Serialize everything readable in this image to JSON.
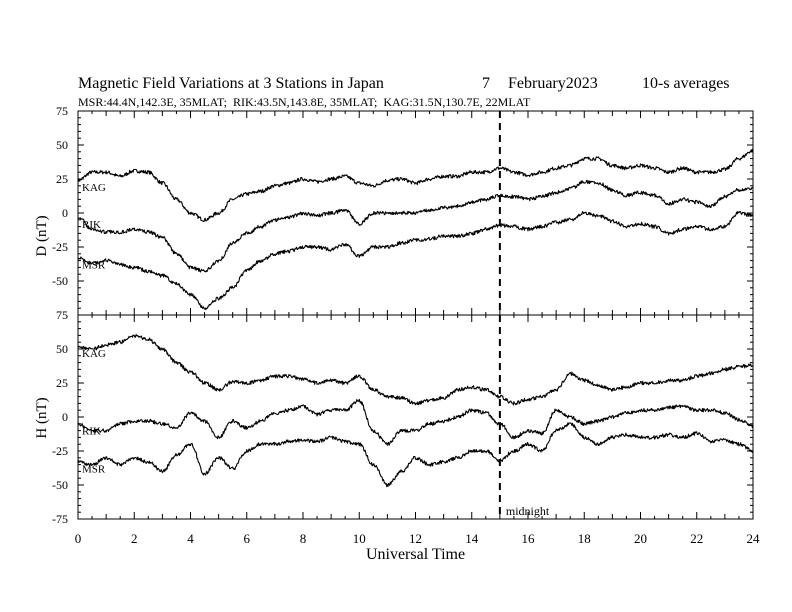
{
  "header": {
    "title": "Magnetic Field Variations at 3 Stations in Japan",
    "day": "7",
    "month_year": "February2023",
    "averaging": "10-s averages",
    "stations_line": "MSR:44.4N,142.3E, 35MLAT;  RIK:43.5N,143.8E, 35MLAT;  KAG:31.5N,130.7E, 22MLAT"
  },
  "chart_data": [
    {
      "type": "line",
      "panel": "D",
      "ylabel": "D (nT)",
      "ylim": [
        -75,
        75
      ],
      "yticks": [
        75,
        50,
        25,
        0,
        -25,
        -50,
        -75
      ],
      "xlim": [
        0,
        24
      ],
      "xticks": [
        0,
        2,
        4,
        6,
        8,
        10,
        12,
        14,
        16,
        18,
        20,
        22,
        24
      ],
      "series": [
        {
          "name": "KAG",
          "x": [
            0,
            0.5,
            1,
            1.5,
            2,
            2.5,
            3,
            3.5,
            4,
            4.5,
            5,
            5.5,
            6,
            6.5,
            7,
            7.5,
            8,
            8.5,
            9,
            9.5,
            10,
            10.5,
            11,
            11.5,
            12,
            12.5,
            13,
            13.5,
            14,
            14.5,
            15,
            15.5,
            16,
            16.5,
            17,
            17.5,
            18,
            18.5,
            19,
            19.5,
            20,
            20.5,
            21,
            21.5,
            22,
            22.5,
            23,
            23.5,
            24
          ],
          "values": [
            24,
            30,
            30,
            27,
            31,
            30,
            22,
            10,
            0,
            -5,
            0,
            10,
            14,
            16,
            20,
            22,
            25,
            23,
            25,
            27,
            22,
            20,
            24,
            25,
            22,
            25,
            27,
            27,
            30,
            30,
            33,
            30,
            28,
            30,
            33,
            35,
            40,
            40,
            35,
            33,
            35,
            33,
            30,
            33,
            30,
            30,
            32,
            40,
            46
          ]
        },
        {
          "name": "RIK",
          "x": [
            0,
            0.5,
            1,
            1.5,
            2,
            2.5,
            3,
            3.5,
            4,
            4.5,
            5,
            5.5,
            6,
            6.5,
            7,
            7.5,
            8,
            8.5,
            9,
            9.5,
            10,
            10.5,
            11,
            11.5,
            12,
            12.5,
            13,
            13.5,
            14,
            14.5,
            15,
            15.5,
            16,
            16.5,
            17,
            17.5,
            18,
            18.5,
            19,
            19.5,
            20,
            20.5,
            21,
            21.5,
            22,
            22.5,
            23,
            23.5,
            24
          ],
          "values": [
            -3,
            -12,
            -14,
            -14,
            -12,
            -14,
            -18,
            -30,
            -40,
            -43,
            -35,
            -22,
            -15,
            -10,
            -5,
            -3,
            0,
            -2,
            0,
            2,
            -8,
            0,
            0,
            0,
            0,
            2,
            4,
            5,
            8,
            10,
            13,
            12,
            10,
            12,
            15,
            18,
            23,
            22,
            17,
            13,
            15,
            13,
            7,
            10,
            8,
            5,
            12,
            17,
            18
          ]
        },
        {
          "name": "MSR",
          "x": [
            0,
            0.5,
            1,
            1.5,
            2,
            2.5,
            3,
            3.5,
            4,
            4.5,
            5,
            5.5,
            6,
            6.5,
            7,
            7.5,
            8,
            8.5,
            9,
            9.5,
            10,
            10.5,
            11,
            11.5,
            12,
            12.5,
            13,
            13.5,
            14,
            14.5,
            15,
            15.5,
            16,
            16.5,
            17,
            17.5,
            18,
            18.5,
            19,
            19.5,
            20,
            20.5,
            21,
            21.5,
            22,
            22.5,
            23,
            23.5,
            24
          ],
          "values": [
            -33,
            -37,
            -35,
            -38,
            -40,
            -43,
            -46,
            -52,
            -60,
            -70,
            -63,
            -55,
            -42,
            -35,
            -30,
            -28,
            -25,
            -25,
            -27,
            -23,
            -32,
            -25,
            -25,
            -22,
            -20,
            -19,
            -17,
            -17,
            -15,
            -12,
            -9,
            -10,
            -12,
            -10,
            -7,
            -5,
            0,
            -2,
            -6,
            -10,
            -8,
            -10,
            -15,
            -12,
            -10,
            -12,
            -10,
            0,
            -2
          ]
        }
      ]
    },
    {
      "type": "line",
      "panel": "H",
      "ylabel": "H (nT)",
      "ylim": [
        -75,
        75
      ],
      "yticks": [
        75,
        50,
        25,
        0,
        -25,
        -50,
        -75
      ],
      "xlim": [
        0,
        24
      ],
      "xticks": [
        0,
        2,
        4,
        6,
        8,
        10,
        12,
        14,
        16,
        18,
        20,
        22,
        24
      ],
      "xlabel": "Universal Time",
      "series": [
        {
          "name": "KAG",
          "x": [
            0,
            0.5,
            1,
            1.5,
            2,
            2.5,
            3,
            3.5,
            4,
            4.5,
            5,
            5.5,
            6,
            6.5,
            7,
            7.5,
            8,
            8.5,
            9,
            9.5,
            10,
            10.5,
            11,
            11.5,
            12,
            12.5,
            13,
            13.5,
            14,
            14.5,
            15,
            15.5,
            16,
            16.5,
            17,
            17.5,
            18,
            18.5,
            19,
            19.5,
            20,
            20.5,
            21,
            21.5,
            22,
            22.5,
            23,
            23.5,
            24
          ],
          "values": [
            52,
            50,
            53,
            55,
            60,
            57,
            50,
            40,
            33,
            25,
            20,
            26,
            25,
            27,
            30,
            30,
            28,
            25,
            27,
            25,
            30,
            20,
            15,
            14,
            10,
            12,
            14,
            20,
            22,
            20,
            15,
            10,
            13,
            15,
            20,
            32,
            27,
            23,
            20,
            22,
            25,
            25,
            27,
            27,
            30,
            32,
            35,
            37,
            38
          ]
        },
        {
          "name": "RIK",
          "x": [
            0,
            0.5,
            1,
            1.5,
            2,
            2.5,
            3,
            3.5,
            4,
            4.5,
            5,
            5.5,
            6,
            6.5,
            7,
            7.5,
            8,
            8.5,
            9,
            9.5,
            10,
            10.5,
            11,
            11.5,
            12,
            12.5,
            13,
            13.5,
            14,
            14.5,
            15,
            15.5,
            16,
            16.5,
            17,
            17.5,
            18,
            18.5,
            19,
            19.5,
            20,
            20.5,
            21,
            21.5,
            22,
            22.5,
            23,
            23.5,
            24
          ],
          "values": [
            -5,
            -10,
            -10,
            -5,
            -3,
            -3,
            -5,
            -8,
            3,
            -3,
            -15,
            -3,
            -8,
            -3,
            3,
            5,
            8,
            2,
            5,
            5,
            12,
            -10,
            -20,
            -10,
            -10,
            -5,
            -3,
            0,
            5,
            3,
            -5,
            -15,
            -10,
            -12,
            5,
            0,
            -5,
            -3,
            0,
            3,
            5,
            5,
            7,
            8,
            5,
            5,
            3,
            -2,
            -7
          ]
        },
        {
          "name": "MSR",
          "x": [
            0,
            0.5,
            1,
            1.5,
            2,
            2.5,
            3,
            3.5,
            4,
            4.5,
            5,
            5.5,
            6,
            6.5,
            7,
            7.5,
            8,
            8.5,
            9,
            9.5,
            10,
            10.5,
            11,
            11.5,
            12,
            12.5,
            13,
            13.5,
            14,
            14.5,
            15,
            15.5,
            16,
            16.5,
            17,
            17.5,
            18,
            18.5,
            19,
            19.5,
            20,
            20.5,
            21,
            21.5,
            22,
            22.5,
            23,
            23.5,
            24
          ],
          "values": [
            -33,
            -35,
            -30,
            -35,
            -30,
            -33,
            -40,
            -28,
            -20,
            -42,
            -30,
            -38,
            -25,
            -20,
            -20,
            -18,
            -17,
            -18,
            -15,
            -18,
            -20,
            -35,
            -50,
            -40,
            -30,
            -35,
            -33,
            -30,
            -25,
            -25,
            -32,
            -25,
            -20,
            -25,
            -10,
            -5,
            -15,
            -20,
            -15,
            -13,
            -15,
            -15,
            -13,
            -15,
            -12,
            -18,
            -17,
            -20,
            -25
          ]
        }
      ]
    }
  ],
  "annotation": {
    "midnight_ut": 15,
    "midnight_label": "midnight"
  }
}
